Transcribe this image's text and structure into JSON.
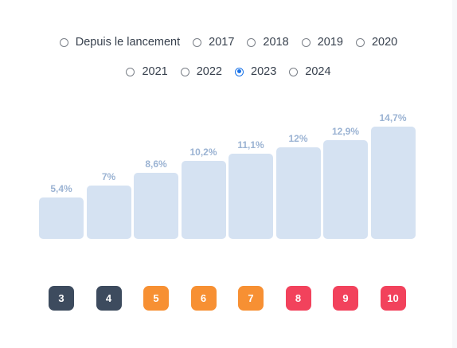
{
  "filters": {
    "row1": [
      {
        "label": "Depuis le lancement",
        "selected": false
      },
      {
        "label": "2017",
        "selected": false
      },
      {
        "label": "2018",
        "selected": false
      },
      {
        "label": "2019",
        "selected": false
      },
      {
        "label": "2020",
        "selected": false
      }
    ],
    "row2": [
      {
        "label": "2021",
        "selected": false
      },
      {
        "label": "2022",
        "selected": false
      },
      {
        "label": "2023",
        "selected": true
      },
      {
        "label": "2024",
        "selected": false
      }
    ]
  },
  "chart_data": {
    "type": "bar",
    "categories": [
      "3",
      "4",
      "5",
      "6",
      "7",
      "8",
      "9",
      "10"
    ],
    "values": [
      5.4,
      7,
      8.6,
      10.2,
      11.1,
      12,
      12.9,
      14.7
    ],
    "value_labels": [
      "5,4%",
      "7%",
      "8,6%",
      "10,2%",
      "11,1%",
      "12%",
      "12,9%",
      "14,7%"
    ],
    "badge_colors": [
      "#3d4b5e",
      "#3d4b5e",
      "#f79033",
      "#f79033",
      "#f79033",
      "#f2425c",
      "#f2425c",
      "#f2425c"
    ],
    "bar_color": "#d5e2f2"
  }
}
